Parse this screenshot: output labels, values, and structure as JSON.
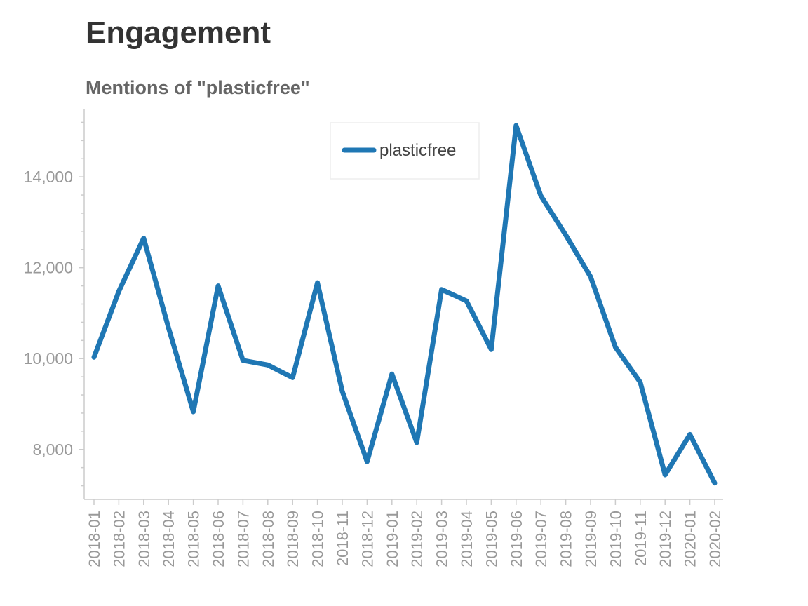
{
  "page": {
    "title": "Engagement"
  },
  "chart_data": {
    "type": "line",
    "title": "Mentions of \"plasticfree\"",
    "xlabel": "",
    "ylabel": "",
    "categories": [
      "2018-01",
      "2018-02",
      "2018-03",
      "2018-04",
      "2018-05",
      "2018-06",
      "2018-07",
      "2018-08",
      "2018-09",
      "2018-10",
      "2018-11",
      "2018-12",
      "2019-01",
      "2019-02",
      "2019-03",
      "2019-04",
      "2019-05",
      "2019-06",
      "2019-07",
      "2019-08",
      "2019-09",
      "2019-10",
      "2019-11",
      "2019-12",
      "2020-01",
      "2020-02"
    ],
    "series": [
      {
        "name": "plasticfree",
        "color": "#1f77b4",
        "values": [
          10030,
          11480,
          12650,
          10680,
          8830,
          11600,
          9960,
          9860,
          9580,
          11670,
          9280,
          7730,
          9660,
          8150,
          11520,
          11270,
          10200,
          15130,
          13580,
          12720,
          11800,
          10250,
          9480,
          7440,
          8330,
          7260
        ]
      }
    ],
    "yticks": [
      8000,
      10000,
      12000,
      14000
    ],
    "ytick_labels": [
      "8,000",
      "10,000",
      "12,000",
      "14,000"
    ],
    "ylim": [
      6900,
      15500
    ],
    "grid": false,
    "legend": "top-center",
    "axis_color": "#cccccc",
    "tick_label_color": "#999999"
  }
}
